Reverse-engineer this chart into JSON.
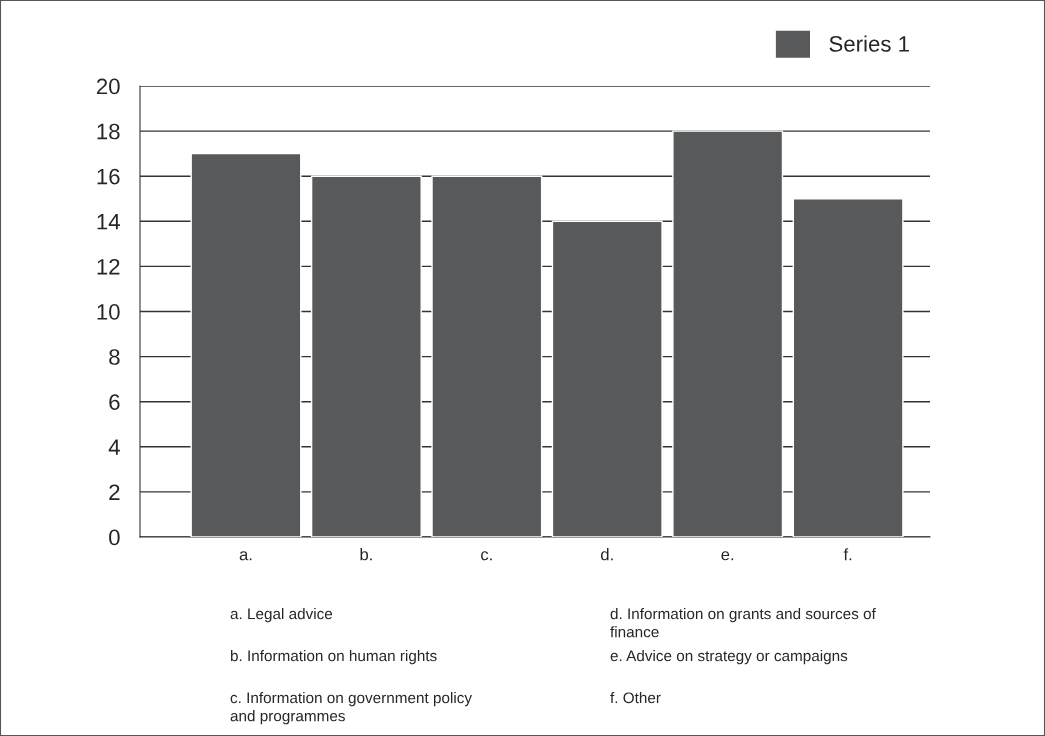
{
  "chart_data": {
    "type": "bar",
    "categories": [
      "a.",
      "b.",
      "c.",
      "d.",
      "e.",
      "f."
    ],
    "series": [
      {
        "name": "Series 1",
        "color": "#58595b",
        "values": [
          17,
          16,
          16,
          14,
          18,
          15
        ]
      }
    ],
    "ylim": [
      0,
      20
    ],
    "yticks": [
      0,
      2,
      4,
      6,
      8,
      10,
      12,
      14,
      16,
      18,
      20
    ],
    "grid": "y",
    "legend": "top right",
    "annotations": [
      "a. Legal advice",
      "b. Information on human rights",
      "c. Information on government policy\nand programmes",
      "d. Information on grants and sources of\nfinance",
      "e. Advice on strategy or campaigns",
      "f. Other"
    ]
  }
}
